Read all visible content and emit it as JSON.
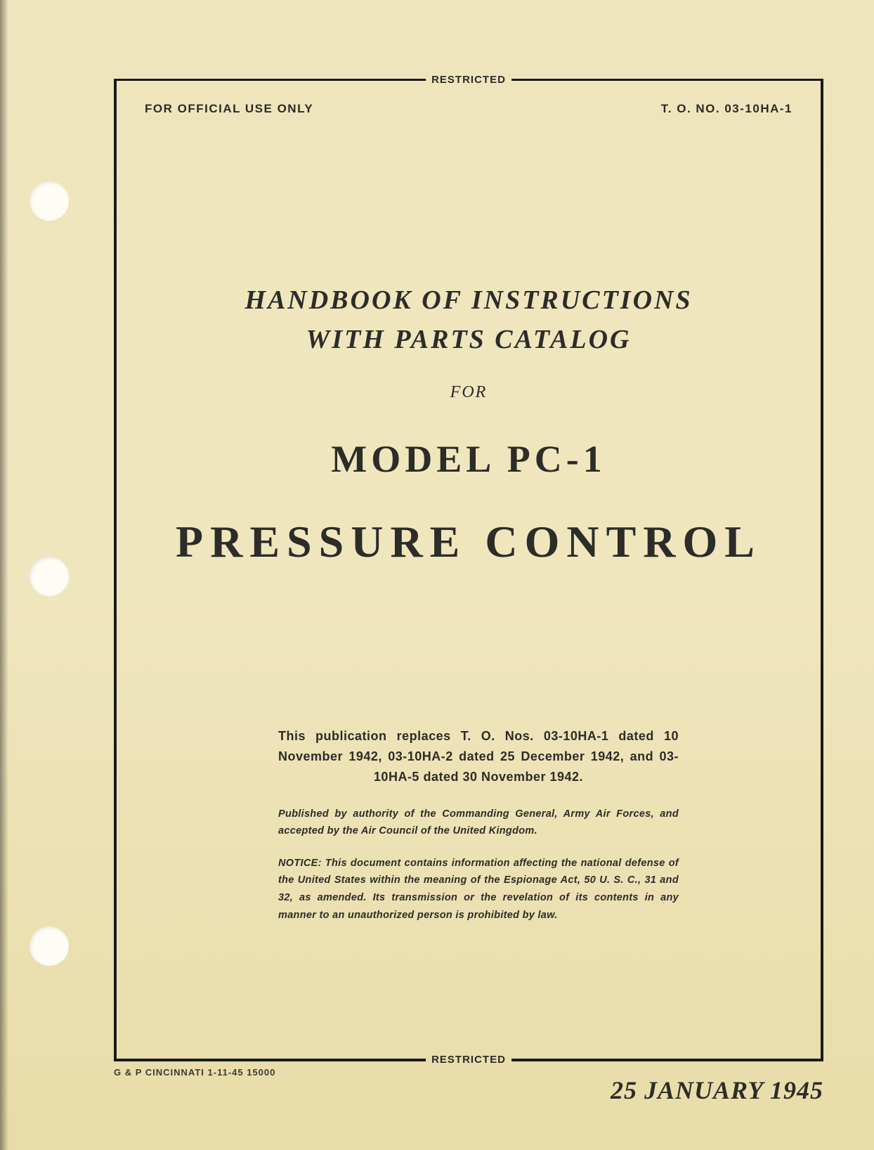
{
  "page": {
    "background_color": "#efe5bd",
    "border_color": "#1a1a18",
    "text_color": "#2c2c28"
  },
  "classification": {
    "top": "RESTRICTED",
    "bottom": "RESTRICTED"
  },
  "header": {
    "left": "FOR OFFICIAL USE ONLY",
    "right": "T. O. NO. 03-10HA-1"
  },
  "title": {
    "line1": "HANDBOOK OF INSTRUCTIONS",
    "line2": "WITH PARTS CATALOG",
    "for": "FOR",
    "model": "MODEL PC-1",
    "subject": "PRESSURE CONTROL"
  },
  "body": {
    "replaces": "This publication replaces T. O. Nos. 03-10HA-1 dated 10 November 1942, 03-10HA-2 dated 25 December 1942, and 03-10HA-5 dated 30 November 1942.",
    "published": "Published by authority of the Commanding General, Army Air Forces, and accepted by the Air Council of the United Kingdom.",
    "notice": "NOTICE: This document contains information affecting the national defense of the United States within the meaning of the Espionage Act, 50 U. S. C., 31 and 32, as amended. Its transmission or the revelation of its contents in any manner to an unauthorized person is prohibited by law."
  },
  "footer": {
    "printer": "G & P CINCINNATI 1-11-45 15000",
    "date": "25 JANUARY 1945"
  }
}
